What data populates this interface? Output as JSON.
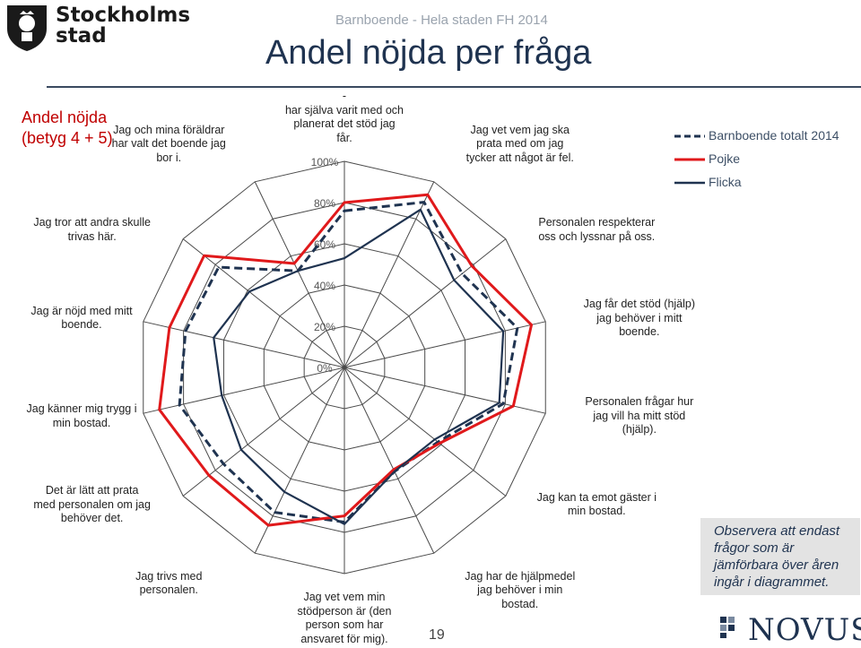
{
  "header": {
    "logo_text": [
      "Stockholms",
      "stad"
    ],
    "subtitle": "Barnboende - Hela staden FH 2014",
    "title": "Andel nöjda per fråga"
  },
  "sidebar": {
    "title_lines": [
      "Andel nöjda",
      "(betyg 4 + 5)"
    ]
  },
  "legend": [
    {
      "label": "Barnboende totalt 2014",
      "color": "#1f3350",
      "style": "dashed"
    },
    {
      "label": "Pojke",
      "color": "#e0191b",
      "style": "solid"
    },
    {
      "label": "Flicka",
      "color": "#1f3350",
      "style": "solid"
    }
  ],
  "note": {
    "text": "Observera att endast frågor som är jämförbara över åren ingår i diagrammet."
  },
  "footer": {
    "brand": "NOVUS",
    "page_number": "19"
  },
  "chart_data": {
    "type": "radar",
    "title": "Andel nöjda per fråga",
    "rlim": [
      0,
      100
    ],
    "r_ticks": [
      "0%",
      "20%",
      "40%",
      "60%",
      "80%",
      "100%"
    ],
    "categories": [
      [
        "-",
        "har själva varit med och",
        "planerat det stöd jag",
        "får."
      ],
      [
        "Jag vet vem jag ska",
        "prata med om jag",
        "tycker att något är fel."
      ],
      [
        "Personalen respekterar",
        "oss och lyssnar på oss."
      ],
      [
        "Jag får det stöd (hjälp)",
        "jag behöver i mitt",
        "boende."
      ],
      [
        "Personalen frågar hur",
        "jag vill ha mitt stöd",
        "(hjälp)."
      ],
      [
        "Jag kan ta emot gäster i",
        "min bostad."
      ],
      [
        "Jag har de hjälpmedel",
        "jag behöver i min",
        "bostad."
      ],
      [
        "Jag vet vem min",
        "stödperson är (den",
        "person som har",
        "ansvaret för mig)."
      ],
      [
        "Jag trivs med",
        "personalen."
      ],
      [
        "Det är lätt att prata",
        "med personalen om jag",
        "behöver det."
      ],
      [
        "Jag känner mig trygg i",
        "min bostad."
      ],
      [
        "Jag är nöjd med mitt",
        "boende."
      ],
      [
        "Jag tror att andra skulle",
        "trivas här."
      ],
      [
        "Jag och mina föräldrar",
        "har valt det boende jag",
        "bor i."
      ]
    ],
    "series": [
      {
        "name": "Barnboende totalt 2014",
        "color": "#1f3350",
        "dash": true,
        "values": [
          76,
          89,
          73,
          86,
          79,
          58,
          56,
          75,
          78,
          75,
          82,
          79,
          78,
          52
        ]
      },
      {
        "name": "Pojke",
        "color": "#e0191b",
        "dash": false,
        "values": [
          80,
          93,
          79,
          93,
          84,
          59,
          55,
          72,
          85,
          84,
          92,
          87,
          87,
          56
        ]
      },
      {
        "name": "Flicka",
        "color": "#1f3350",
        "dash": false,
        "values": [
          53,
          85,
          68,
          79,
          77,
          56,
          56,
          76,
          67,
          64,
          61,
          65,
          59,
          52
        ]
      }
    ]
  }
}
